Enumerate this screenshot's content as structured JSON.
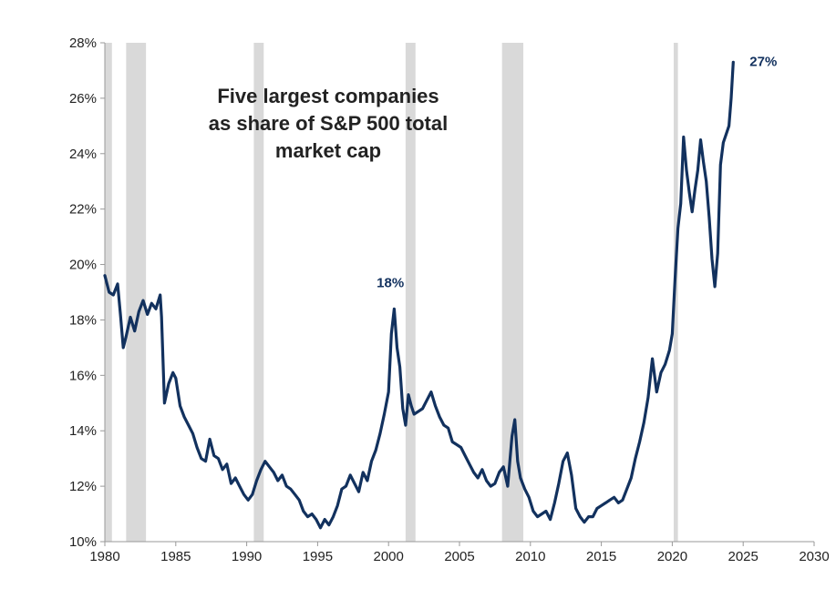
{
  "chart_data": {
    "type": "line",
    "title": "Five largest companies as share of S&P 500 total market cap",
    "title_lines": [
      "Five largest companies",
      "as share of S&P 500 total",
      "market cap"
    ],
    "xlabel": "",
    "ylabel": "",
    "xlim": [
      1980,
      2030
    ],
    "ylim": [
      10,
      28
    ],
    "x_ticks": [
      1980,
      1985,
      1990,
      1995,
      2000,
      2005,
      2010,
      2015,
      2020,
      2025,
      2030
    ],
    "y_ticks": [
      10,
      12,
      14,
      16,
      18,
      20,
      22,
      24,
      26,
      28
    ],
    "y_tick_labels": [
      "10%",
      "12%",
      "14%",
      "16%",
      "18%",
      "20%",
      "22%",
      "24%",
      "26%",
      "28%"
    ],
    "grid": false,
    "legend": "none",
    "line_color": "#12315e",
    "recession_color": "#d9d9d9",
    "recession_periods": [
      [
        1980.0,
        1980.5
      ],
      [
        1981.5,
        1982.9
      ],
      [
        1990.5,
        1991.2
      ],
      [
        2001.2,
        2001.9
      ],
      [
        2008.0,
        2009.5
      ],
      [
        2020.1,
        2020.4
      ]
    ],
    "annotations": [
      {
        "text": "18%",
        "x": 2000.0,
        "y": 18.4
      },
      {
        "text": "27%",
        "x": 2024.3,
        "y": 27.3
      }
    ],
    "series": [
      {
        "x": [
          1980.0,
          1980.3,
          1980.6,
          1980.9,
          1981.1,
          1981.3,
          1981.5,
          1981.8,
          1982.1,
          1982.4,
          1982.7,
          1983.0,
          1983.3,
          1983.6,
          1983.9,
          1984.0,
          1984.2,
          1984.5,
          1984.8,
          1985.0,
          1985.3,
          1985.6,
          1985.9,
          1986.2,
          1986.5,
          1986.8,
          1987.1,
          1987.4,
          1987.7,
          1988.0,
          1988.3,
          1988.6,
          1988.9,
          1989.2,
          1989.5,
          1989.8,
          1990.1,
          1990.4,
          1990.7,
          1991.0,
          1991.3,
          1991.6,
          1991.9,
          1992.2,
          1992.5,
          1992.8,
          1993.1,
          1993.4,
          1993.7,
          1994.0,
          1994.3,
          1994.6,
          1994.9,
          1995.2,
          1995.5,
          1995.8,
          1996.1,
          1996.4,
          1996.7,
          1997.0,
          1997.3,
          1997.6,
          1997.9,
          1998.2,
          1998.5,
          1998.8,
          1999.1,
          1999.4,
          1999.7,
          2000.0,
          2000.2,
          2000.4,
          2000.6,
          2000.8,
          2001.0,
          2001.2,
          2001.4,
          2001.6,
          2001.8,
          2002.1,
          2002.4,
          2002.7,
          2003.0,
          2003.3,
          2003.6,
          2003.9,
          2004.2,
          2004.5,
          2004.8,
          2005.1,
          2005.4,
          2005.7,
          2006.0,
          2006.3,
          2006.6,
          2006.9,
          2007.2,
          2007.5,
          2007.8,
          2008.1,
          2008.4,
          2008.7,
          2008.9,
          2009.1,
          2009.3,
          2009.6,
          2009.9,
          2010.2,
          2010.5,
          2010.8,
          2011.1,
          2011.4,
          2011.7,
          2012.0,
          2012.3,
          2012.6,
          2012.9,
          2013.2,
          2013.5,
          2013.8,
          2014.1,
          2014.4,
          2014.7,
          2015.0,
          2015.3,
          2015.6,
          2015.9,
          2016.2,
          2016.5,
          2016.8,
          2017.1,
          2017.4,
          2017.7,
          2018.0,
          2018.3,
          2018.6,
          2018.9,
          2019.2,
          2019.5,
          2019.8,
          2020.0,
          2020.2,
          2020.4,
          2020.6,
          2020.8,
          2021.0,
          2021.2,
          2021.4,
          2021.6,
          2021.8,
          2022.0,
          2022.2,
          2022.4,
          2022.6,
          2022.8,
          2023.0,
          2023.2,
          2023.4,
          2023.6,
          2023.8,
          2024.0,
          2024.15,
          2024.3
        ],
        "values": [
          19.6,
          19.0,
          18.9,
          19.3,
          18.2,
          17.0,
          17.4,
          18.1,
          17.6,
          18.3,
          18.7,
          18.2,
          18.6,
          18.4,
          18.9,
          18.1,
          15.0,
          15.7,
          16.1,
          15.9,
          14.9,
          14.5,
          14.2,
          13.9,
          13.4,
          13.0,
          12.9,
          13.7,
          13.1,
          13.0,
          12.6,
          12.8,
          12.1,
          12.3,
          12.0,
          11.7,
          11.5,
          11.7,
          12.2,
          12.6,
          12.9,
          12.7,
          12.5,
          12.2,
          12.4,
          12.0,
          11.9,
          11.7,
          11.5,
          11.1,
          10.9,
          11.0,
          10.8,
          10.5,
          10.8,
          10.6,
          10.9,
          11.3,
          11.9,
          12.0,
          12.4,
          12.1,
          11.8,
          12.5,
          12.2,
          12.9,
          13.3,
          13.9,
          14.6,
          15.4,
          17.5,
          18.4,
          17.0,
          16.3,
          14.8,
          14.2,
          15.3,
          14.9,
          14.6,
          14.7,
          14.8,
          15.1,
          15.4,
          14.9,
          14.5,
          14.2,
          14.1,
          13.6,
          13.5,
          13.4,
          13.1,
          12.8,
          12.5,
          12.3,
          12.6,
          12.2,
          12.0,
          12.1,
          12.5,
          12.7,
          12.0,
          13.8,
          14.4,
          12.9,
          12.3,
          11.9,
          11.6,
          11.1,
          10.9,
          11.0,
          11.1,
          10.8,
          11.4,
          12.1,
          12.9,
          13.2,
          12.4,
          11.2,
          10.9,
          10.7,
          10.9,
          10.9,
          11.2,
          11.3,
          11.4,
          11.5,
          11.6,
          11.4,
          11.5,
          11.9,
          12.3,
          13.0,
          13.6,
          14.3,
          15.2,
          16.6,
          15.4,
          16.1,
          16.4,
          16.9,
          17.5,
          19.5,
          21.3,
          22.2,
          24.6,
          23.4,
          22.6,
          21.9,
          22.7,
          23.4,
          24.5,
          23.7,
          23.0,
          21.7,
          20.2,
          19.2,
          20.4,
          23.6,
          24.4,
          24.7,
          25.0,
          26.0,
          27.3
        ]
      }
    ]
  }
}
